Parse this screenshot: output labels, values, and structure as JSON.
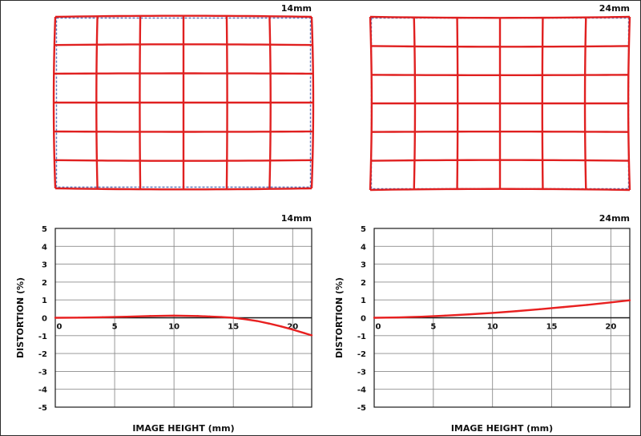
{
  "colors": {
    "distorted_grid": "#e02020",
    "ideal_grid": "#5a72b8",
    "curve": "#e82020",
    "gridline": "#8c8c8c",
    "axis": "#1a1a1a",
    "text": "#111111"
  },
  "chart_data": [
    {
      "type": "line",
      "title": "14mm",
      "xlabel": "IMAGE HEIGHT (mm)",
      "ylabel": "DISTORTION (%)",
      "xlim": [
        0,
        21.6
      ],
      "ylim": [
        -5,
        5
      ],
      "x_ticks": [
        0,
        5,
        10,
        15,
        20
      ],
      "y_ticks": [
        5,
        4,
        3,
        2,
        1,
        0,
        -1,
        -2,
        -3,
        -4,
        -5
      ],
      "grid": true,
      "series": [
        {
          "x": [
            0,
            2,
            4,
            6,
            8,
            10,
            12,
            13,
            14,
            15,
            16,
            17,
            18,
            19,
            20,
            21,
            21.6
          ],
          "y": [
            0,
            0.01,
            0.03,
            0.06,
            0.1,
            0.12,
            0.1,
            0.07,
            0.04,
            0,
            -0.08,
            -0.18,
            -0.32,
            -0.48,
            -0.66,
            -0.86,
            -0.98
          ]
        }
      ]
    },
    {
      "type": "line",
      "title": "24mm",
      "xlabel": "IMAGE HEIGHT (mm)",
      "ylabel": "DISTORTION (%)",
      "xlim": [
        0,
        21.6
      ],
      "ylim": [
        -5,
        5
      ],
      "x_ticks": [
        0,
        5,
        10,
        15,
        20
      ],
      "y_ticks": [
        5,
        4,
        3,
        2,
        1,
        0,
        -1,
        -2,
        -3,
        -4,
        -5
      ],
      "grid": true,
      "series": [
        {
          "x": [
            0,
            2,
            4,
            6,
            8,
            10,
            12,
            14,
            16,
            18,
            20,
            21.6
          ],
          "y": [
            0,
            0.02,
            0.06,
            0.12,
            0.19,
            0.27,
            0.37,
            0.48,
            0.6,
            0.72,
            0.86,
            0.98
          ]
        }
      ]
    }
  ],
  "distortion_grids": [
    {
      "title": "14mm",
      "cols": 6,
      "rows": 6,
      "type": "barrel"
    },
    {
      "title": "24mm",
      "cols": 6,
      "rows": 6,
      "type": "pincushion"
    }
  ]
}
